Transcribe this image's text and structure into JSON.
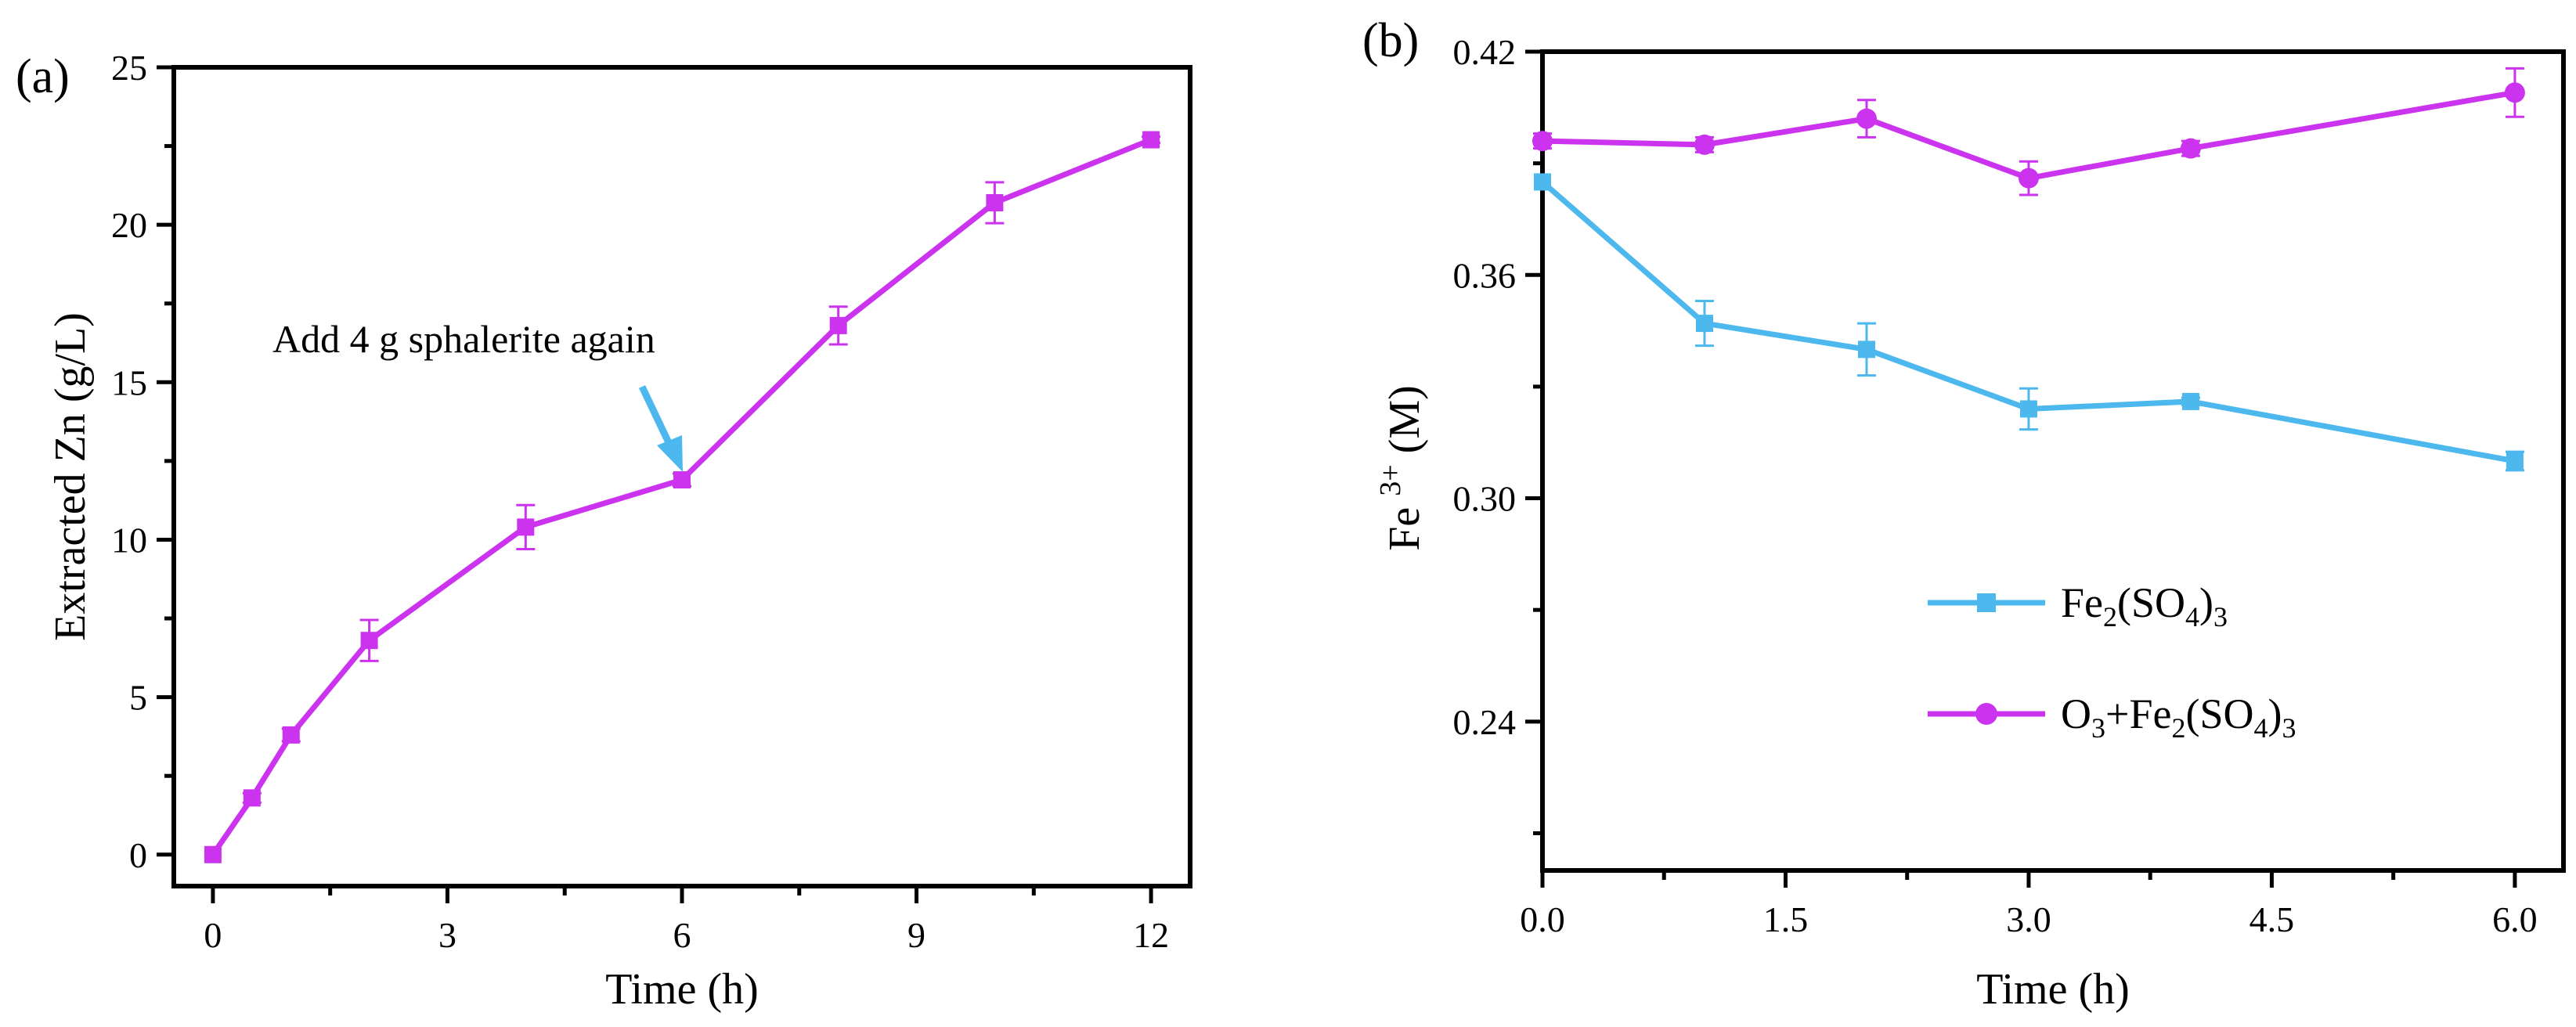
{
  "chart_data": [
    {
      "panel": "(a)",
      "type": "line",
      "xlabel": "Time (h)",
      "ylabel": "Extracted Zn (g/L)",
      "xlim": [
        -0.5,
        12.5
      ],
      "ylim": [
        -1,
        25
      ],
      "xticks": [
        0,
        3,
        6,
        9,
        12
      ],
      "yticks": [
        0,
        5,
        10,
        15,
        20,
        25
      ],
      "annotation": {
        "text": "Add 4 g sphalerite again",
        "x": 6,
        "y": 11.9
      },
      "series": [
        {
          "name": "Extracted Zn",
          "color": "#cc33ee",
          "marker": "square",
          "x": [
            0,
            0.5,
            1,
            2,
            4,
            6,
            8,
            10,
            12
          ],
          "y": [
            0,
            1.8,
            3.8,
            6.8,
            10.4,
            11.9,
            16.8,
            20.7,
            22.7
          ],
          "err": [
            0,
            0.15,
            0.2,
            0.65,
            0.7,
            0.2,
            0.6,
            0.65,
            0.1
          ]
        }
      ]
    },
    {
      "panel": "(b)",
      "type": "line",
      "xlabel": "Time (h)",
      "ylabel": "Fe 3+ (M)",
      "xlim": [
        0,
        6.3
      ],
      "ylim": [
        0.2,
        0.42
      ],
      "xticks": [
        "0.0",
        "1.5",
        "3.0",
        "4.5",
        "6.0"
      ],
      "yticks": [
        "0.24",
        "0.30",
        "0.36",
        "0.42"
      ],
      "legend_position": "center-right",
      "series": [
        {
          "name": "Fe2(SO4)3",
          "color": "#4db8ee",
          "marker": "square",
          "x": [
            0,
            1,
            2,
            3,
            4,
            6
          ],
          "y": [
            0.385,
            0.347,
            0.34,
            0.324,
            0.326,
            0.31
          ],
          "err": [
            0,
            0.006,
            0.007,
            0.0055,
            0.001,
            0.0025
          ]
        },
        {
          "name": "O3+Fe2(SO4)3",
          "color": "#cc33ee",
          "marker": "circle",
          "x": [
            0,
            1,
            2,
            3,
            4,
            6
          ],
          "y": [
            0.396,
            0.395,
            0.402,
            0.386,
            0.394,
            0.409
          ],
          "err": [
            0.002,
            0.002,
            0.005,
            0.0045,
            0.002,
            0.0065
          ]
        }
      ]
    }
  ],
  "legend": {
    "fe_label": {
      "pre": "Fe",
      "sub1": "2",
      "mid": "(SO",
      "sub2": "4",
      "post": ")",
      "sub3": "3"
    },
    "o3fe_label": {
      "pre": "O",
      "sub0": "3",
      "mid0": "+Fe",
      "sub1": "2",
      "mid": "(SO",
      "sub2": "4",
      "post": ")",
      "sub3": "3"
    }
  },
  "ylabel_b": {
    "base": "Fe ",
    "sup": "3+",
    "unit": " (M)"
  }
}
